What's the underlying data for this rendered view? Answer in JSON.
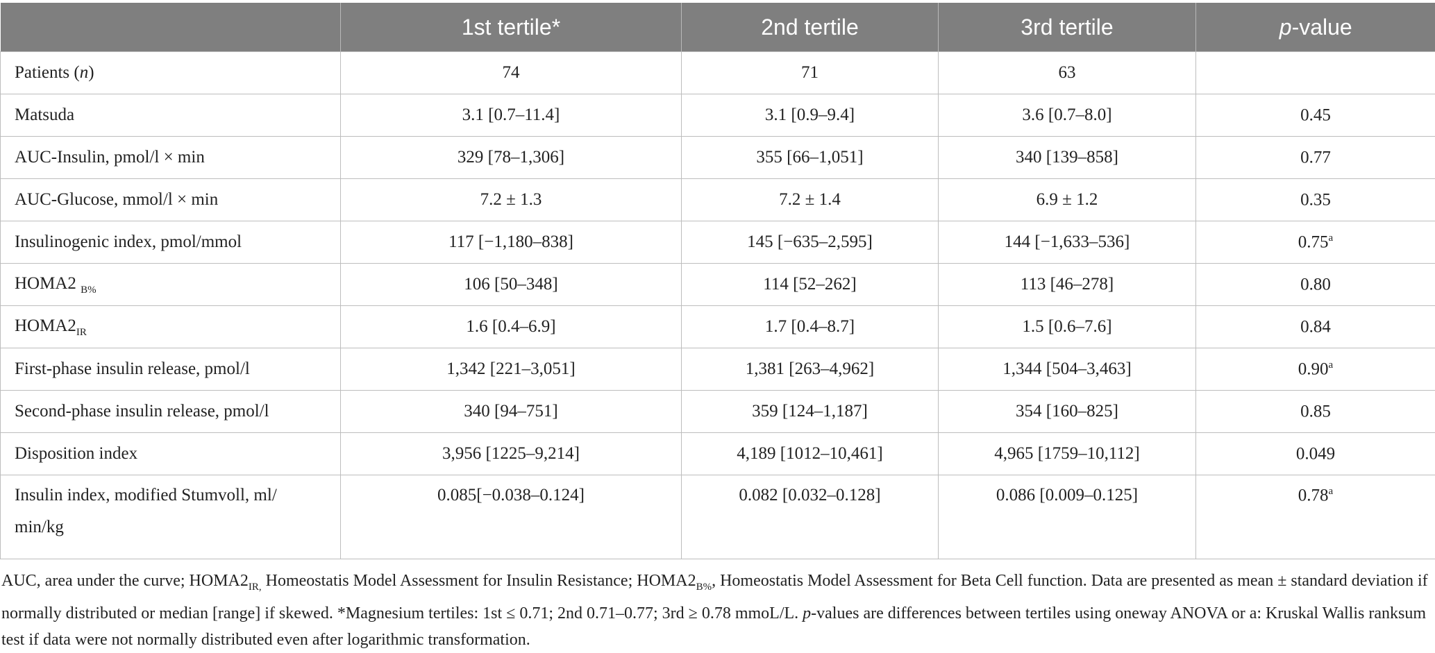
{
  "columns": [
    "",
    "1st tertile*",
    "2nd tertile",
    "3rd tertile",
    "p-value"
  ],
  "pvalue_header": {
    "italic": "p",
    "rest": "-value"
  },
  "rows": [
    {
      "label": "Patients (",
      "label_italic": "n",
      "label_tail": ")",
      "c1": "74",
      "c2": "71",
      "c3": "63",
      "p": "",
      "p_sup": ""
    },
    {
      "label": "Matsuda",
      "c1": "3.1 [0.7–11.4]",
      "c2": "3.1 [0.9–9.4]",
      "c3": "3.6 [0.7–8.0]",
      "p": "0.45",
      "p_sup": ""
    },
    {
      "label": "AUC-Insulin, pmol/l × min",
      "c1": "329 [78–1,306]",
      "c2": "355 [66–1,051]",
      "c3": "340 [139–858]",
      "p": "0.77",
      "p_sup": ""
    },
    {
      "label": "AUC-Glucose, mmol/l × min",
      "c1": "7.2 ± 1.3",
      "c2": "7.2 ± 1.4",
      "c3": "6.9 ± 1.2",
      "p": "0.35",
      "p_sup": ""
    },
    {
      "label": "Insulinogenic index, pmol/mmol",
      "c1": "117 [−1,180–838]",
      "c2": "145 [−635–2,595]",
      "c3": "144 [−1,633–536]",
      "p": "0.75",
      "p_sup": "a"
    },
    {
      "label": "HOMA2 ",
      "label_sub": "B%",
      "c1": "106 [50–348]",
      "c2": "114 [52–262]",
      "c3": "113 [46–278]",
      "p": "0.80",
      "p_sup": ""
    },
    {
      "label": "HOMA2",
      "label_sub": "IR",
      "c1": "1.6 [0.4–6.9]",
      "c2": "1.7 [0.4–8.7]",
      "c3": "1.5 [0.6–7.6]",
      "p": "0.84",
      "p_sup": ""
    },
    {
      "label": "First-phase insulin release, pmol/l",
      "c1": "1,342 [221–3,051]",
      "c2": "1,381 [263–4,962]",
      "c3": "1,344 [504–3,463]",
      "p": "0.90",
      "p_sup": "a"
    },
    {
      "label": "Second-phase insulin release, pmol/l",
      "c1": "340 [94–751]",
      "c2": "359 [124–1,187]",
      "c3": "354 [160–825]",
      "p": "0.85",
      "p_sup": ""
    },
    {
      "label": "Disposition index",
      "c1": "3,956 [1225–9,214]",
      "c2": "4,189 [1012–10,461]",
      "c3": "4,965 [1759–10,112]",
      "p": "0.049",
      "p_sup": ""
    },
    {
      "label": "Insulin index, modified Stumvoll, ml/",
      "label_line2": "min/kg",
      "c1": "0.085[−0.038–0.124]",
      "c2": "0.082 [0.032–0.128]",
      "c3": "0.086 [0.009–0.125]",
      "p": "0.78",
      "p_sup": "a"
    }
  ],
  "footnote": {
    "p1": "AUC, area under the curve; HOMA2",
    "p1_sub": "IR,",
    "p2": " Homeostatis Model Assessment for Insulin Resistance; HOMA2",
    "p2_sub": "B%",
    "p3": ", Homeostatis Model Assessment for Beta Cell function. Data are presented as mean ± standard deviation if normally distributed or median [range] if skewed. *Magnesium tertiles: 1st ≤ 0.71; 2nd 0.71–0.77; 3rd ≥ 0.78 mmoL/L. ",
    "p3_italic": "p",
    "p4": "-values are differences between tertiles using oneway ANOVA or a: Kruskal Wallis ranksum test if data were not normally distributed even after logarithmic transformation."
  }
}
